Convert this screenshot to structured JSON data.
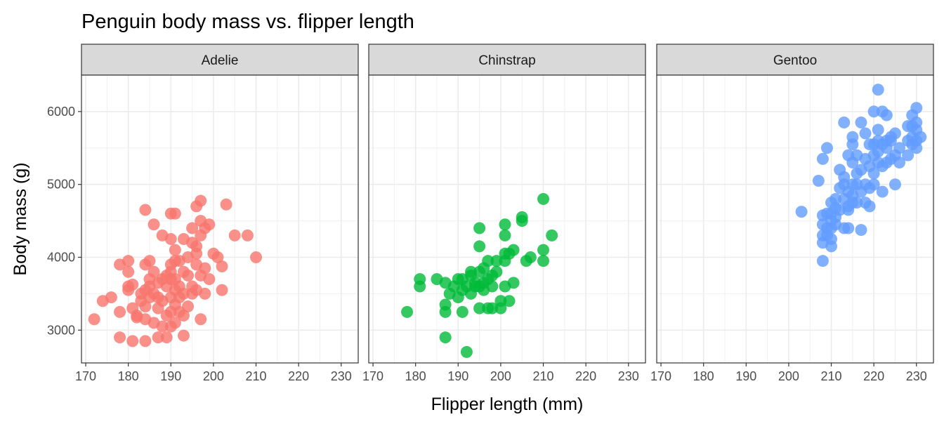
{
  "chart_data": {
    "type": "scatter",
    "title": "Penguin body mass vs. flipper length",
    "xlabel": "Flipper length (mm)",
    "ylabel": "Body mass (g)",
    "xlim": [
      169,
      234
    ],
    "ylim": [
      2550,
      6500
    ],
    "x_ticks": [
      170,
      180,
      190,
      200,
      210,
      220,
      230
    ],
    "y_ticks": [
      3000,
      4000,
      5000,
      6000
    ],
    "grid": true,
    "legend": "none",
    "facets": [
      {
        "name": "Adelie",
        "color": "#F8766D",
        "points": [
          [
            172,
            3150
          ],
          [
            174,
            3400
          ],
          [
            176,
            3450
          ],
          [
            178,
            3900
          ],
          [
            178,
            3250
          ],
          [
            178,
            2900
          ],
          [
            180,
            3950
          ],
          [
            180,
            3800
          ],
          [
            180,
            3600
          ],
          [
            180,
            3550
          ],
          [
            181,
            2850
          ],
          [
            181,
            3625
          ],
          [
            181,
            3300
          ],
          [
            182,
            3200
          ],
          [
            182,
            3175
          ],
          [
            183,
            3500
          ],
          [
            183,
            3400
          ],
          [
            184,
            4650
          ],
          [
            184,
            3900
          ],
          [
            184,
            3325
          ],
          [
            184,
            3150
          ],
          [
            184,
            2850
          ],
          [
            184,
            3550
          ],
          [
            185,
            3700
          ],
          [
            185,
            3450
          ],
          [
            185,
            3950
          ],
          [
            185,
            3600
          ],
          [
            186,
            3800
          ],
          [
            186,
            4450
          ],
          [
            186,
            3100
          ],
          [
            186,
            3500
          ],
          [
            187,
            3300
          ],
          [
            187,
            2900
          ],
          [
            187,
            3650
          ],
          [
            187,
            3450
          ],
          [
            188,
            3050
          ],
          [
            188,
            3700
          ],
          [
            188,
            4300
          ],
          [
            188,
            3400
          ],
          [
            189,
            3200
          ],
          [
            189,
            3600
          ],
          [
            189,
            3750
          ],
          [
            189,
            2900
          ],
          [
            190,
            4600
          ],
          [
            190,
            4250
          ],
          [
            190,
            3900
          ],
          [
            190,
            3800
          ],
          [
            190,
            3450
          ],
          [
            190,
            3250
          ],
          [
            190,
            3050
          ],
          [
            190,
            3700
          ],
          [
            191,
            4600
          ],
          [
            191,
            4100
          ],
          [
            191,
            3950
          ],
          [
            191,
            3550
          ],
          [
            191,
            3350
          ],
          [
            191,
            3100
          ],
          [
            191,
            3700
          ],
          [
            192,
            3950
          ],
          [
            192,
            3600
          ],
          [
            192,
            3250
          ],
          [
            192,
            3450
          ],
          [
            193,
            4250
          ],
          [
            193,
            3800
          ],
          [
            193,
            3500
          ],
          [
            193,
            2925
          ],
          [
            193,
            3200
          ],
          [
            194,
            4000
          ],
          [
            194,
            3325
          ],
          [
            194,
            3750
          ],
          [
            195,
            4400
          ],
          [
            195,
            4200
          ],
          [
            195,
            3600
          ],
          [
            195,
            3500
          ],
          [
            196,
            4700
          ],
          [
            196,
            4150
          ],
          [
            196,
            3900
          ],
          [
            196,
            3550
          ],
          [
            196,
            4050
          ],
          [
            197,
            4775
          ],
          [
            197,
            4500
          ],
          [
            197,
            4300
          ],
          [
            197,
            3750
          ],
          [
            197,
            3150
          ],
          [
            198,
            4400
          ],
          [
            198,
            3850
          ],
          [
            198,
            3500
          ],
          [
            199,
            4450
          ],
          [
            199,
            3700
          ],
          [
            200,
            4050
          ],
          [
            201,
            4000
          ],
          [
            202,
            3875
          ],
          [
            202,
            3550
          ],
          [
            203,
            4725
          ],
          [
            205,
            4300
          ],
          [
            208,
            4300
          ],
          [
            210,
            4000
          ]
        ]
      },
      {
        "name": "Chinstrap",
        "color": "#00BA38",
        "points": [
          [
            178,
            3250
          ],
          [
            181,
            3700
          ],
          [
            181,
            3600
          ],
          [
            185,
            3700
          ],
          [
            187,
            3650
          ],
          [
            187,
            3350
          ],
          [
            187,
            3250
          ],
          [
            187,
            2900
          ],
          [
            188,
            3500
          ],
          [
            189,
            3600
          ],
          [
            190,
            3700
          ],
          [
            190,
            3450
          ],
          [
            191,
            3250
          ],
          [
            191,
            3550
          ],
          [
            191,
            3700
          ],
          [
            192,
            2700
          ],
          [
            192,
            3600
          ],
          [
            193,
            3750
          ],
          [
            193,
            3800
          ],
          [
            193,
            3500
          ],
          [
            194,
            3650
          ],
          [
            194,
            3600
          ],
          [
            195,
            4400
          ],
          [
            195,
            4150
          ],
          [
            195,
            3600
          ],
          [
            195,
            3300
          ],
          [
            195,
            3800
          ],
          [
            196,
            3850
          ],
          [
            196,
            3550
          ],
          [
            196,
            3650
          ],
          [
            197,
            3950
          ],
          [
            197,
            3700
          ],
          [
            197,
            3300
          ],
          [
            198,
            3750
          ],
          [
            198,
            3600
          ],
          [
            198,
            3300
          ],
          [
            199,
            3950
          ],
          [
            199,
            3800
          ],
          [
            200,
            3300
          ],
          [
            200,
            3400
          ],
          [
            201,
            3600
          ],
          [
            201,
            3950
          ],
          [
            201,
            4050
          ],
          [
            201,
            4300
          ],
          [
            201,
            4450
          ],
          [
            202,
            4050
          ],
          [
            202,
            3400
          ],
          [
            203,
            4100
          ],
          [
            203,
            3650
          ],
          [
            205,
            4500
          ],
          [
            205,
            4550
          ],
          [
            206,
            3950
          ],
          [
            207,
            4000
          ],
          [
            210,
            4800
          ],
          [
            210,
            4100
          ],
          [
            210,
            3950
          ],
          [
            212,
            4300
          ]
        ]
      },
      {
        "name": "Gentoo",
        "color": "#619CFF",
        "points": [
          [
            203,
            4625
          ],
          [
            207,
            5050
          ],
          [
            208,
            5350
          ],
          [
            208,
            4575
          ],
          [
            208,
            4450
          ],
          [
            208,
            4300
          ],
          [
            208,
            4200
          ],
          [
            208,
            3950
          ],
          [
            209,
            5500
          ],
          [
            209,
            4600
          ],
          [
            209,
            4400
          ],
          [
            209,
            4300
          ],
          [
            210,
            4750
          ],
          [
            210,
            4600
          ],
          [
            210,
            4500
          ],
          [
            210,
            4400
          ],
          [
            210,
            4250
          ],
          [
            210,
            4150
          ],
          [
            211,
            4800
          ],
          [
            211,
            4675
          ],
          [
            211,
            4550
          ],
          [
            211,
            4450
          ],
          [
            212,
            5200
          ],
          [
            212,
            4650
          ],
          [
            212,
            4950
          ],
          [
            213,
            5850
          ],
          [
            213,
            4800
          ],
          [
            213,
            5100
          ],
          [
            213,
            4400
          ],
          [
            213,
            5000
          ],
          [
            214,
            4900
          ],
          [
            214,
            4650
          ],
          [
            214,
            4400
          ],
          [
            214,
            4700
          ],
          [
            214,
            5400
          ],
          [
            215,
            5650
          ],
          [
            215,
            5300
          ],
          [
            215,
            5000
          ],
          [
            215,
            4850
          ],
          [
            215,
            4750
          ],
          [
            215,
            5550
          ],
          [
            216,
            5400
          ],
          [
            216,
            5000
          ],
          [
            216,
            4750
          ],
          [
            216,
            5150
          ],
          [
            217,
            5850
          ],
          [
            217,
            5200
          ],
          [
            217,
            4900
          ],
          [
            217,
            4375
          ],
          [
            218,
            5700
          ],
          [
            218,
            5350
          ],
          [
            218,
            5000
          ],
          [
            218,
            4750
          ],
          [
            219,
            5550
          ],
          [
            219,
            5250
          ],
          [
            219,
            4950
          ],
          [
            219,
            4700
          ],
          [
            220,
            6000
          ],
          [
            220,
            5400
          ],
          [
            220,
            5000
          ],
          [
            220,
            5150
          ],
          [
            220,
            5550
          ],
          [
            221,
            6300
          ],
          [
            221,
            5750
          ],
          [
            221,
            5300
          ],
          [
            221,
            5600
          ],
          [
            221,
            5450
          ],
          [
            222,
            6000
          ],
          [
            222,
            5250
          ],
          [
            222,
            4900
          ],
          [
            222,
            5550
          ],
          [
            223,
            5950
          ],
          [
            223,
            5600
          ],
          [
            223,
            5500
          ],
          [
            223,
            5300
          ],
          [
            224,
            5600
          ],
          [
            224,
            5350
          ],
          [
            224,
            5650
          ],
          [
            225,
            5700
          ],
          [
            225,
            5400
          ],
          [
            225,
            5000
          ],
          [
            226,
            5500
          ],
          [
            226,
            5300
          ],
          [
            228,
            5400
          ],
          [
            228,
            5600
          ],
          [
            228,
            5800
          ],
          [
            229,
            5950
          ],
          [
            229,
            5800
          ],
          [
            229,
            5550
          ],
          [
            229,
            5650
          ],
          [
            230,
            6050
          ],
          [
            230,
            5850
          ],
          [
            230,
            5750
          ],
          [
            230,
            5600
          ],
          [
            230,
            5500
          ],
          [
            231,
            5650
          ]
        ]
      }
    ]
  }
}
